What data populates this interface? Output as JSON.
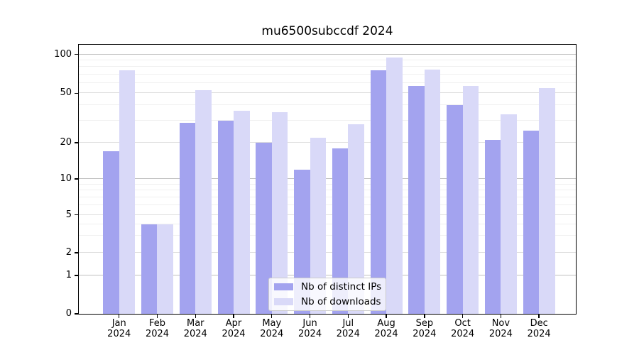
{
  "title": "mu6500subccdf 2024",
  "colors": {
    "distinct_ips": "#a3a3ef",
    "downloads": "#d9d9f8",
    "axis": "#000000",
    "grid_decade": "#c0c0c0",
    "grid_major": "#dedede",
    "grid_minor": "#f0f0f0",
    "legend_border": "#cccccc"
  },
  "legend": {
    "items": [
      {
        "label": "Nb of distinct IPs",
        "color_key": "distinct_ips"
      },
      {
        "label": "Nb of downloads",
        "color_key": "downloads"
      }
    ]
  },
  "chart_data": {
    "type": "bar",
    "title": "mu6500subccdf 2024",
    "categories": [
      "Jan 2024",
      "Feb 2024",
      "Mar 2024",
      "Apr 2024",
      "May 2024",
      "Jun 2024",
      "Jul 2024",
      "Aug 2024",
      "Sep 2024",
      "Oct 2024",
      "Nov 2024",
      "Dec 2024"
    ],
    "x_tick_line1": [
      "Jan",
      "Feb",
      "Mar",
      "Apr",
      "May",
      "Jun",
      "Jul",
      "Aug",
      "Sep",
      "Oct",
      "Nov",
      "Dec"
    ],
    "x_tick_line2": "2024",
    "series": [
      {
        "name": "Nb of distinct IPs",
        "values": [
          17,
          4,
          29,
          30,
          20,
          12,
          18,
          75,
          57,
          40,
          21,
          25
        ]
      },
      {
        "name": "Nb of downloads",
        "values": [
          75,
          4,
          53,
          36,
          35,
          22,
          28,
          95,
          76,
          57,
          34,
          55
        ]
      }
    ],
    "xlabel": "",
    "ylabel": "",
    "y_ticks": [
      0,
      1,
      2,
      5,
      10,
      20,
      50,
      100
    ],
    "y_minor_ticks": [
      3,
      4,
      6,
      7,
      8,
      9,
      30,
      40,
      60,
      70,
      80,
      90
    ],
    "y_decade_ticks": [
      1,
      10,
      100
    ],
    "ylim": [
      0,
      118
    ],
    "y_scale": "log-like with zero baseline",
    "grid": "on",
    "legend_position": "bottom-center"
  }
}
